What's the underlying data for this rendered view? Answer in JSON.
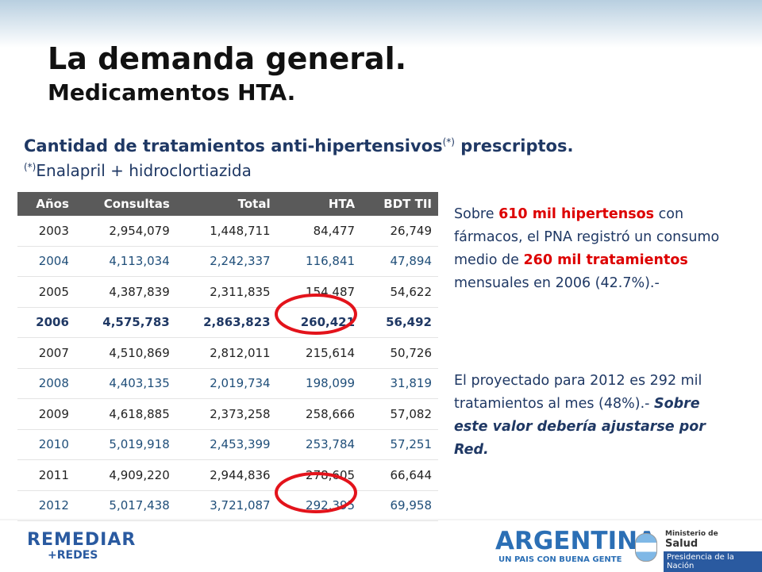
{
  "header": {
    "title": "La demanda general.",
    "subtitle": "Medicamentos HTA."
  },
  "heading": {
    "text": "Cantidad de tratamientos anti-hipertensivos",
    "mark": "(*)",
    "tail": " prescriptos."
  },
  "footnote": {
    "mark": "(*)",
    "text": "Enalapril + hidroclortiazida"
  },
  "table": {
    "columns": [
      "Años",
      "Consultas",
      "Total",
      "HTA",
      "BDT TII"
    ],
    "rows": [
      [
        "2003",
        "2,954,079",
        "1,448,711",
        "84,477",
        "26,749"
      ],
      [
        "2004",
        "4,113,034",
        "2,242,337",
        "116,841",
        "47,894"
      ],
      [
        "2005",
        "4,387,839",
        "2,311,835",
        "154,487",
        "54,622"
      ],
      [
        "2006",
        "4,575,783",
        "2,863,823",
        "260,421",
        "56,492"
      ],
      [
        "2007",
        "4,510,869",
        "2,812,011",
        "215,614",
        "50,726"
      ],
      [
        "2008",
        "4,403,135",
        "2,019,734",
        "198,099",
        "31,819"
      ],
      [
        "2009",
        "4,618,885",
        "2,373,258",
        "258,666",
        "57,082"
      ],
      [
        "2010",
        "5,019,918",
        "2,453,399",
        "253,784",
        "57,251"
      ],
      [
        "2011",
        "4,909,220",
        "2,944,836",
        "278,605",
        "66,644"
      ],
      [
        "2012",
        "5,017,438",
        "3,721,087",
        "292,395",
        "69,958"
      ]
    ]
  },
  "notes": [
    [
      "Sobre ",
      "610 mil hipertensos",
      " con fármacos, el PNA registró un consumo medio de ",
      "260 mil tratamientos",
      " mensuales en 2006 (42.7%).-"
    ],
    [
      "El proyectado para 2012 es 292 mil tratamientos al mes (48%).- ",
      "Sobre este valor debería ajustarse por Red."
    ]
  ],
  "footer": {
    "left": [
      "REMEDIAR",
      "+REDES"
    ],
    "center": [
      "ARGENTINA",
      "UN PAIS CON BUENA GENTE"
    ],
    "right": [
      "Ministerio de",
      "Salud",
      "Presidencia de la Nación"
    ]
  }
}
